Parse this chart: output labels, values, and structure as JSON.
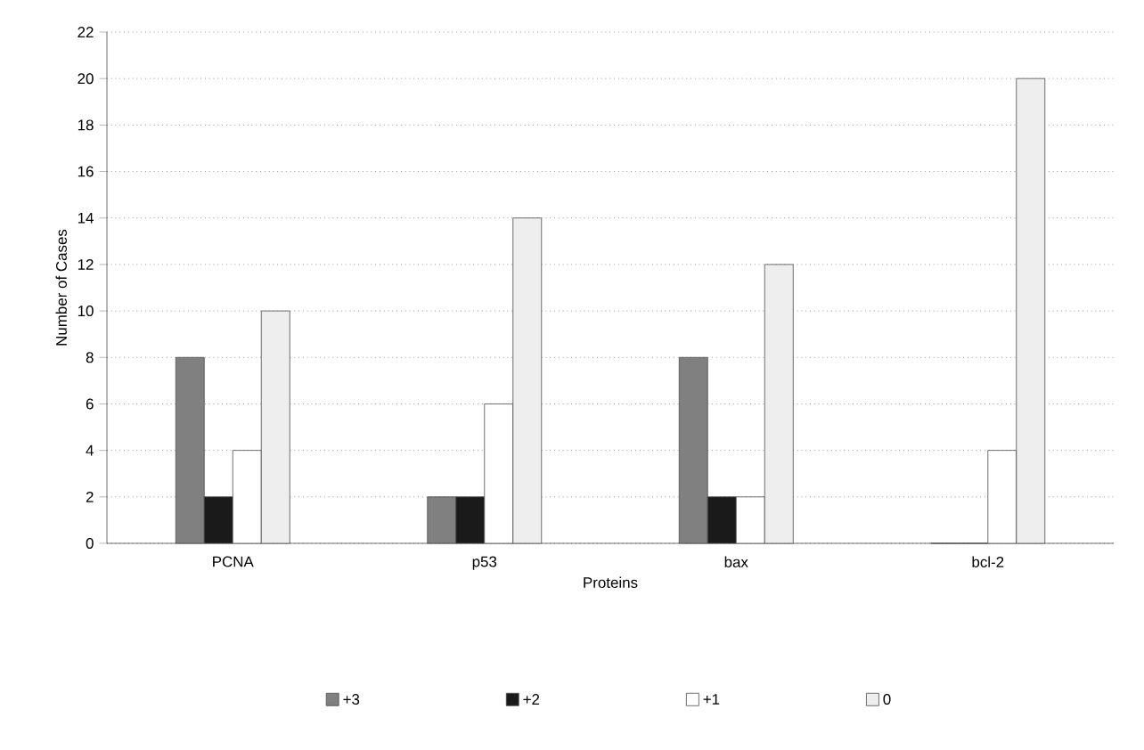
{
  "chart_data": {
    "type": "bar",
    "xlabel": "Proteins",
    "ylabel": "Number of Cases",
    "categories": [
      "PCNA",
      "p53",
      "bax",
      "bcl-2"
    ],
    "series": [
      {
        "name": "+3",
        "color": "#808080",
        "values": [
          8,
          2,
          8,
          0
        ]
      },
      {
        "name": "+2",
        "color": "#1a1a1a",
        "values": [
          2,
          2,
          2,
          0
        ]
      },
      {
        "name": "+1",
        "color": "#ffffff",
        "values": [
          4,
          6,
          2,
          4
        ]
      },
      {
        "name": "0",
        "color": "#eeeeee",
        "values": [
          10,
          14,
          12,
          20
        ]
      }
    ],
    "ylim": [
      0,
      22
    ],
    "yticks": [
      0,
      2,
      4,
      6,
      8,
      10,
      12,
      14,
      16,
      18,
      20,
      22
    ],
    "grid": "y",
    "legend": "bottom"
  }
}
